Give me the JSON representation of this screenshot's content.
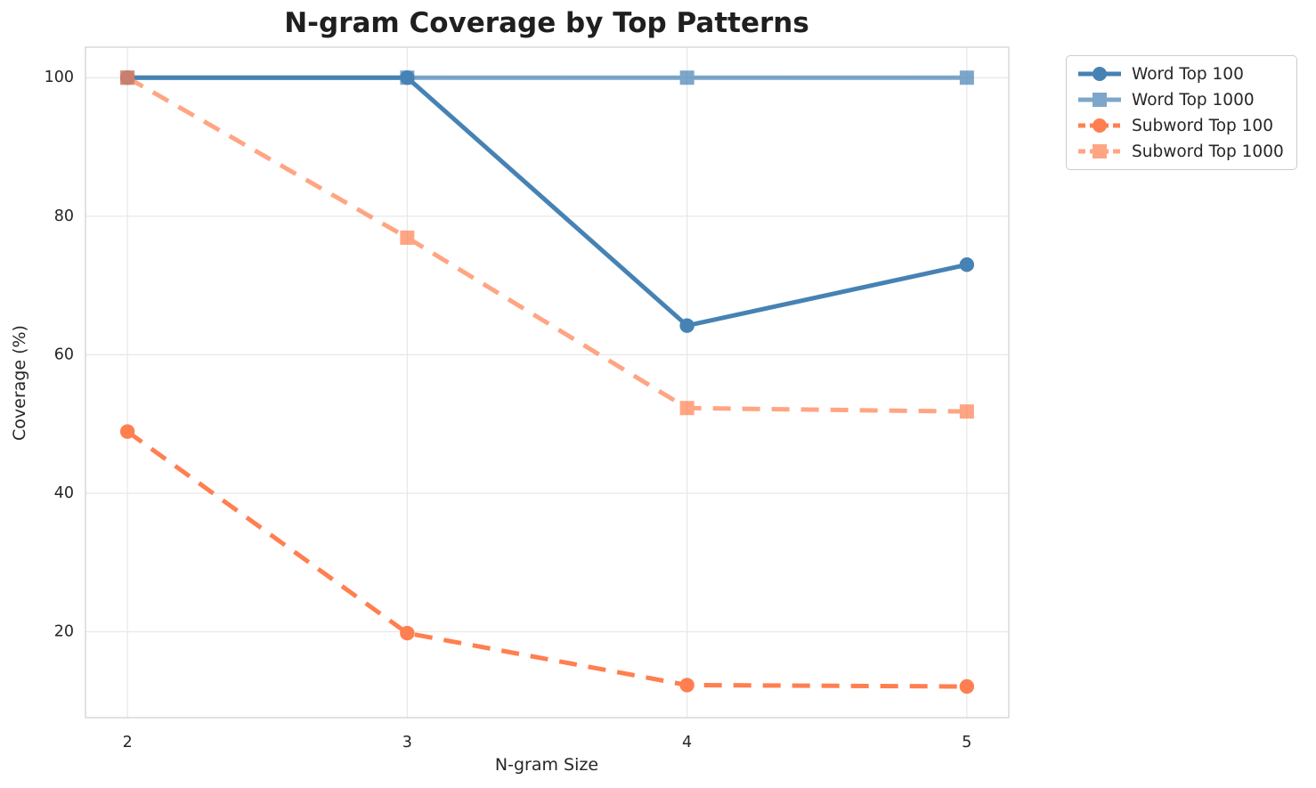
{
  "title": "N-gram Coverage by Top Patterns",
  "chart_data": {
    "type": "line",
    "title": "N-gram Coverage by Top Patterns",
    "xlabel": "N-gram Size",
    "ylabel": "Coverage (%)",
    "x": [
      2,
      3,
      4,
      5
    ],
    "xticks": [
      2,
      3,
      4,
      5
    ],
    "yticks": [
      20,
      40,
      60,
      80,
      100
    ],
    "xlim": [
      1.85,
      5.15
    ],
    "ylim": [
      7.6,
      104.4
    ],
    "grid": true,
    "legend_position": "outside-upper-right",
    "series": [
      {
        "name": "Word Top 100",
        "values": [
          100,
          100,
          64.2,
          73.0
        ],
        "color": "#4682B4",
        "opacity": 1.0,
        "linestyle": "solid",
        "marker": "circle"
      },
      {
        "name": "Word Top 1000",
        "values": [
          100,
          100,
          100,
          100
        ],
        "color": "#4682B4",
        "opacity": 0.7,
        "linestyle": "solid",
        "marker": "square"
      },
      {
        "name": "Subword Top 100",
        "values": [
          48.9,
          19.8,
          12.3,
          12.1
        ],
        "color": "#FF7F50",
        "opacity": 1.0,
        "linestyle": "dashed",
        "marker": "circle"
      },
      {
        "name": "Subword Top 1000",
        "values": [
          100,
          76.9,
          52.3,
          51.8
        ],
        "color": "#FF7F50",
        "opacity": 0.7,
        "linestyle": "dashed",
        "marker": "square"
      }
    ],
    "colors": {
      "blue": "#4682B4",
      "orange": "#FF7F50",
      "grid": "#e7e7e7",
      "spine": "#d6d6d6",
      "text": "#262626"
    }
  }
}
